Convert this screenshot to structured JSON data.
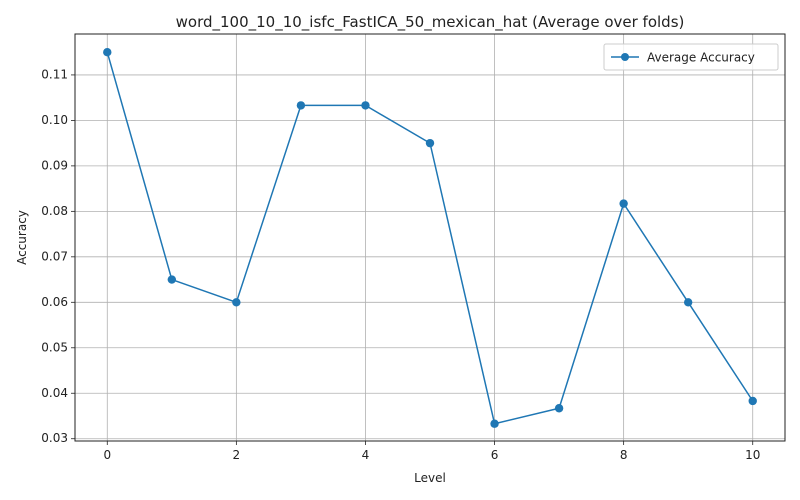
{
  "chart_data": {
    "type": "line",
    "title": "word_100_10_10_isfc_FastICA_50_mexican_hat (Average over folds)",
    "xlabel": "Level",
    "ylabel": "Accuracy",
    "xlim": [
      -0.5,
      10.5
    ],
    "ylim": [
      0.0295,
      0.119
    ],
    "xticks": [
      0,
      2,
      4,
      6,
      8,
      10
    ],
    "xtick_labels": [
      "0",
      "2",
      "4",
      "6",
      "8",
      "10"
    ],
    "yticks": [
      0.03,
      0.04,
      0.05,
      0.06,
      0.07,
      0.08,
      0.09,
      0.1,
      0.11
    ],
    "ytick_labels": [
      "0.03",
      "0.04",
      "0.05",
      "0.06",
      "0.07",
      "0.08",
      "0.09",
      "0.10",
      "0.11"
    ],
    "grid": true,
    "legend_position": "top-right",
    "series": [
      {
        "name": "Average Accuracy",
        "color": "#1f77b4",
        "marker": "circle",
        "x": [
          0,
          1,
          2,
          3,
          4,
          5,
          6,
          7,
          8,
          9,
          10
        ],
        "y": [
          0.115,
          0.065,
          0.06,
          0.1033,
          0.1033,
          0.095,
          0.0333,
          0.0367,
          0.0817,
          0.06,
          0.0383
        ]
      }
    ]
  }
}
